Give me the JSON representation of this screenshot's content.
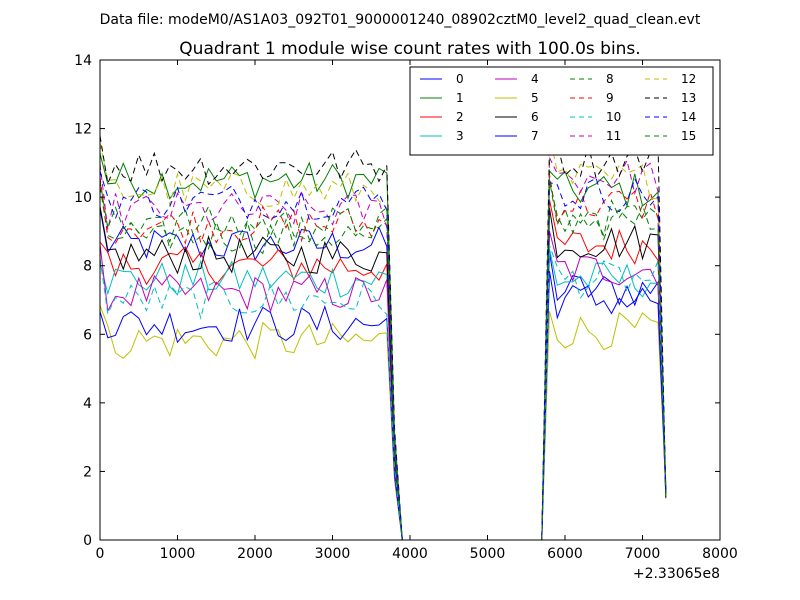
{
  "chart_data": {
    "type": "line",
    "suptitle": "Data file: modeM0/AS1A03_092T01_9000001240_08902cztM0_level2_quad_clean.evt",
    "title": "Quadrant 1 module wise count rates with 100.0s bins.",
    "xlabel": "",
    "ylabel": "",
    "x_offset_label": "+2.33065e8",
    "xlim": [
      0,
      8000
    ],
    "ylim": [
      0,
      14
    ],
    "xticks": [
      0,
      1000,
      2000,
      3000,
      4000,
      5000,
      6000,
      7000,
      8000
    ],
    "yticks": [
      0,
      2,
      4,
      6,
      8,
      10,
      12,
      14
    ],
    "grid": false,
    "legend_position": "top-right",
    "legend_columns": 4,
    "segments": [
      {
        "x_start": 0,
        "x_end": 3700
      },
      {
        "x_start": 5800,
        "x_end": 7200
      }
    ],
    "series": [
      {
        "name": "0",
        "color": "#0000ff",
        "dash": "solid",
        "level1": 8.6,
        "level2": 7.3,
        "fall_end": 3900,
        "rise_start": 5700
      },
      {
        "name": "1",
        "color": "#008000",
        "dash": "solid",
        "level1": 10.5,
        "level2": 10.2,
        "fall_end": 3900,
        "rise_start": 5700
      },
      {
        "name": "2",
        "color": "#ff0000",
        "dash": "solid",
        "level1": 8.0,
        "level2": 8.6,
        "fall_end": 3900,
        "rise_start": 5700
      },
      {
        "name": "3",
        "color": "#00bfbf",
        "dash": "solid",
        "level1": 7.6,
        "level2": 7.6,
        "fall_end": 3900,
        "rise_start": 5700
      },
      {
        "name": "4",
        "color": "#bf00bf",
        "dash": "solid",
        "level1": 7.2,
        "level2": 7.9,
        "fall_end": 3900,
        "rise_start": 5700
      },
      {
        "name": "5",
        "color": "#bfbf00",
        "dash": "solid",
        "level1": 5.8,
        "level2": 6.1,
        "fall_end": 3900,
        "rise_start": 5700
      },
      {
        "name": "6",
        "color": "#000000",
        "dash": "solid",
        "level1": 8.3,
        "level2": 8.7,
        "fall_end": 3900,
        "rise_start": 5700
      },
      {
        "name": "7",
        "color": "#0000ff",
        "dash": "solid",
        "level1": 6.3,
        "level2": 7.0,
        "fall_end": 3900,
        "rise_start": 5700
      },
      {
        "name": "8",
        "color": "#008000",
        "dash": "dashed",
        "level1": 8.9,
        "level2": 9.4,
        "fall_end": 3900,
        "rise_start": 5700
      },
      {
        "name": "9",
        "color": "#ff0000",
        "dash": "dashed",
        "level1": 9.2,
        "level2": 9.8,
        "fall_end": 3900,
        "rise_start": 5700
      },
      {
        "name": "10",
        "color": "#00bfbf",
        "dash": "dashed",
        "level1": 7.0,
        "level2": 7.6,
        "fall_end": 3900,
        "rise_start": 5700
      },
      {
        "name": "11",
        "color": "#bf00bf",
        "dash": "dashed",
        "level1": 9.6,
        "level2": 10.6,
        "fall_end": 3900,
        "rise_start": 5700
      },
      {
        "name": "12",
        "color": "#bfbf00",
        "dash": "dashed",
        "level1": 10.2,
        "level2": 10.5,
        "fall_end": 3900,
        "rise_start": 5700
      },
      {
        "name": "13",
        "color": "#000000",
        "dash": "dashed",
        "level1": 10.9,
        "level2": 11.1,
        "fall_end": 3900,
        "rise_start": 5700
      },
      {
        "name": "14",
        "color": "#0000ff",
        "dash": "dashed",
        "level1": 9.9,
        "level2": 10.1,
        "fall_end": 3900,
        "rise_start": 5700
      },
      {
        "name": "15",
        "color": "#008000",
        "dash": "dashed",
        "level1": 9.2,
        "level2": 9.3,
        "fall_end": 3900,
        "rise_start": 5700
      }
    ]
  }
}
